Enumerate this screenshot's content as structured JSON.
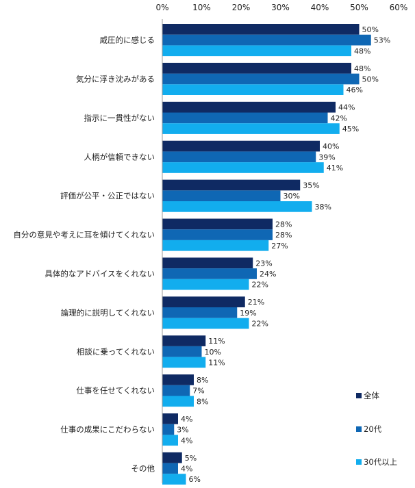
{
  "chart_data": {
    "type": "bar",
    "orientation": "horizontal",
    "categories": [
      "威圧的に感じる",
      "気分に浮き沈みがある",
      "指示に一貫性がない",
      "人柄が信頼できない",
      "評価が公平・公正ではない",
      "自分の意見や考えに耳を傾けてくれない",
      "具体的なアドバイスをくれない",
      "論理的に説明してくれない",
      "相談に乗ってくれない",
      "仕事を任せてくれない",
      "仕事の成果にこだわらない",
      "その他"
    ],
    "series": [
      {
        "name": "全体",
        "color": "#0f2a63",
        "values": [
          50,
          48,
          44,
          40,
          35,
          28,
          23,
          21,
          11,
          8,
          4,
          5
        ]
      },
      {
        "name": "20代",
        "color": "#0f67b4",
        "values": [
          53,
          50,
          42,
          39,
          30,
          28,
          24,
          19,
          10,
          7,
          3,
          4
        ]
      },
      {
        "name": "30代以上",
        "color": "#12adee",
        "values": [
          48,
          46,
          45,
          41,
          38,
          27,
          22,
          22,
          11,
          8,
          4,
          6
        ]
      }
    ],
    "xlim": [
      0,
      60
    ],
    "xticks": [
      "0%",
      "10%",
      "20%",
      "30%",
      "40%",
      "50%",
      "60%"
    ],
    "value_suffix": "%",
    "legend_position": "bottom-right",
    "grid": false
  }
}
